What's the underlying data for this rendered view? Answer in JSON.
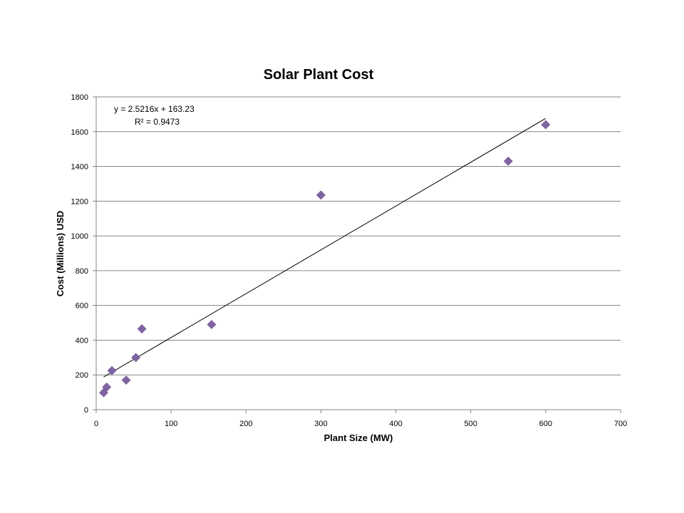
{
  "chart_data": {
    "type": "scatter",
    "title": "Solar Plant Cost",
    "xlabel": "Plant Size (MW)",
    "ylabel": "Cost (Millions) USD",
    "xlim": [
      0,
      700
    ],
    "ylim": [
      0,
      1800
    ],
    "x_ticks": [
      0,
      100,
      200,
      300,
      400,
      500,
      600,
      700
    ],
    "y_ticks": [
      0,
      200,
      400,
      600,
      800,
      1000,
      1200,
      1400,
      1600,
      1800
    ],
    "grid": "horizontal",
    "legend": "none",
    "marker": "diamond",
    "marker_color": "#8064A2",
    "series": [
      {
        "x": [
          10,
          14,
          21,
          40,
          53,
          61,
          154,
          300,
          550,
          600
        ],
        "y": [
          98,
          130,
          225,
          170,
          300,
          465,
          490,
          1235,
          1430,
          1640
        ]
      }
    ],
    "trendline": {
      "type": "linear",
      "slope": 2.5216,
      "intercept": 163.23,
      "x_range": [
        10,
        600
      ],
      "color": "#000000",
      "equation_label": "y = 2.5216x + 163.23",
      "r2_label": "R² = 0.9473"
    }
  }
}
